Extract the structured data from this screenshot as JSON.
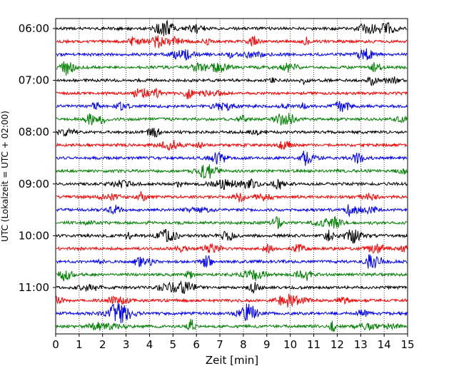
{
  "chart_data": {
    "type": "line",
    "subtype": "helicorder",
    "xlabel": "Zeit  [min]",
    "ylabel": "UTC (Lokalzeit = UTC + 02:00)",
    "xlim": [
      0,
      15
    ],
    "x_ticks": [
      "0",
      "1",
      "2",
      "3",
      "4",
      "5",
      "6",
      "7",
      "8",
      "9",
      "10",
      "11",
      "12",
      "13",
      "14",
      "15"
    ],
    "y_tick_labels": [
      "06:00",
      "07:00",
      "08:00",
      "09:00",
      "10:00",
      "11:00"
    ],
    "traces_count": 24,
    "trace_start_times": [
      "06:00",
      "06:15",
      "06:30",
      "06:45",
      "07:00",
      "07:15",
      "07:30",
      "07:45",
      "08:00",
      "08:15",
      "08:30",
      "08:45",
      "09:00",
      "09:15",
      "09:30",
      "09:45",
      "10:00",
      "10:15",
      "10:30",
      "10:45",
      "11:00",
      "11:15",
      "11:30",
      "11:45"
    ],
    "trace_colors_cycle": [
      "#000000",
      "#ff0000",
      "#0000ff",
      "#008000"
    ],
    "grid": "vertical dotted lines at each minute",
    "legend": "none"
  }
}
